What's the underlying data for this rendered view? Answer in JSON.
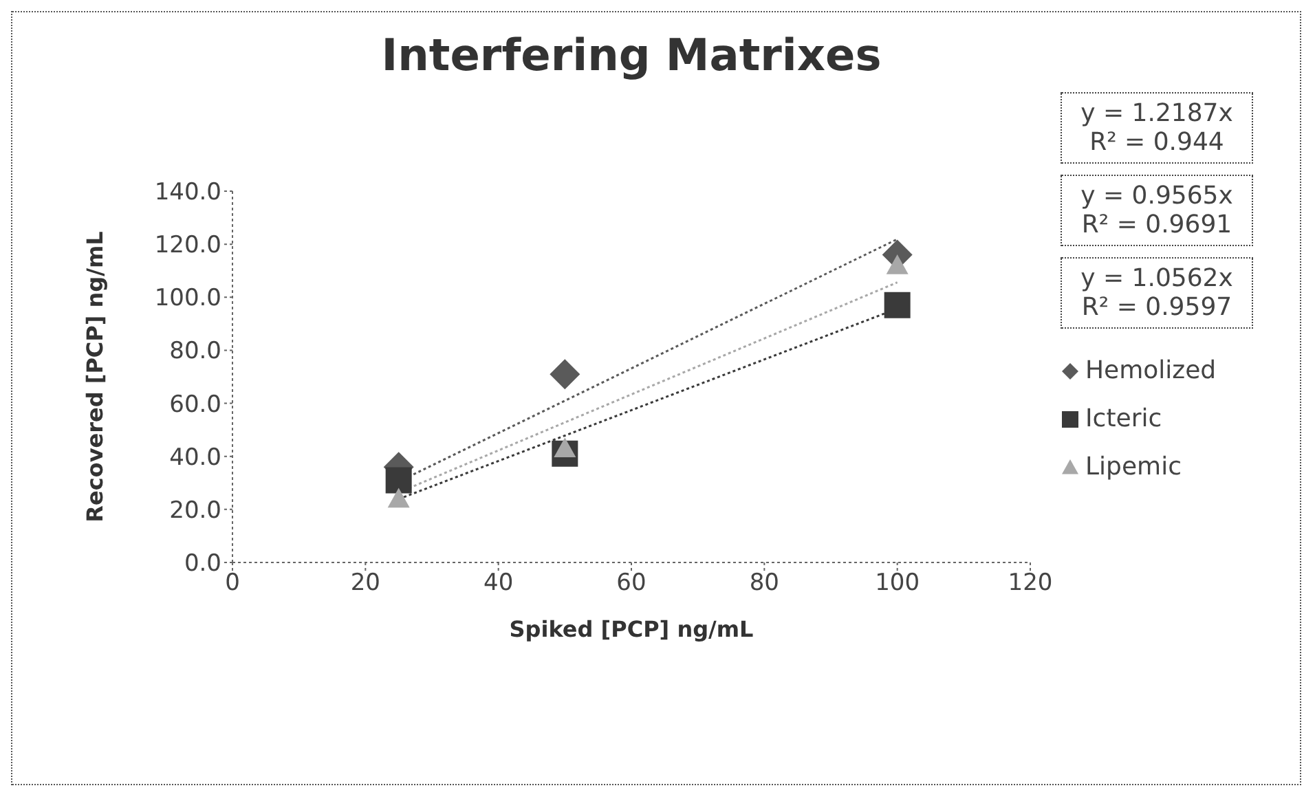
{
  "chart_data": {
    "type": "scatter",
    "title": "Interfering Matrixes",
    "xlabel": "Spiked [PCP] ng/mL",
    "ylabel": "Recovered [PCP] ng/mL",
    "xlim": [
      0,
      120
    ],
    "xticks": [
      0,
      20,
      40,
      60,
      80,
      100,
      120
    ],
    "ylim": [
      0,
      140
    ],
    "yticks": [
      {
        "value": 0,
        "label": "0.0"
      },
      {
        "value": 20,
        "label": "20.0"
      },
      {
        "value": 40,
        "label": "40.0"
      },
      {
        "value": 60,
        "label": "60.0"
      },
      {
        "value": 80,
        "label": "80.0"
      },
      {
        "value": 100,
        "label": "100.0"
      },
      {
        "value": 120,
        "label": "120.0"
      },
      {
        "value": 140,
        "label": "140.0"
      }
    ],
    "grid": false,
    "legend": "right",
    "series": [
      {
        "name": "Hemolized",
        "color": "#5a5a5a",
        "marker": "diamond",
        "x": [
          25,
          50,
          100
        ],
        "values": [
          36,
          71,
          116
        ]
      },
      {
        "name": "Icteric",
        "color": "#3a3a3a",
        "marker": "square",
        "x": [
          25,
          50,
          100
        ],
        "values": [
          31,
          41,
          97
        ]
      },
      {
        "name": "Lipemic",
        "color": "#a8a8a8",
        "marker": "triangle",
        "x": [
          25,
          50,
          100
        ],
        "values": [
          24,
          43,
          112
        ]
      },
      {
        "type": "line",
        "color": "#5a5a5a",
        "line_style": "dotted",
        "x": [
          25,
          100
        ],
        "values": [
          30.5,
          121.9
        ]
      },
      {
        "type": "line",
        "color": "#3a3a3a",
        "line_style": "dotted",
        "x": [
          25,
          100
        ],
        "values": [
          23.9,
          95.7
        ]
      },
      {
        "type": "line",
        "color": "#a8a8a8",
        "line_style": "dotted",
        "x": [
          25,
          100
        ],
        "values": [
          26.4,
          105.6
        ]
      }
    ],
    "annotations": [
      "y = 1.2187x\nR² = 0.944",
      "y = 0.9565x\nR² = 0.9691",
      "y = 1.0562x\nR² = 0.9597"
    ]
  }
}
